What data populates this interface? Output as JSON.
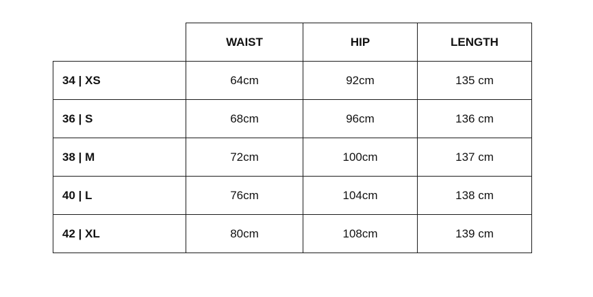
{
  "headers": [
    "WAIST",
    "HIP",
    "LENGTH"
  ],
  "rows": [
    {
      "size": "34 | XS",
      "values": [
        "64cm",
        "92cm",
        "135 cm"
      ]
    },
    {
      "size": "36 | S",
      "values": [
        "68cm",
        "96cm",
        "136 cm"
      ]
    },
    {
      "size": "38 | M",
      "values": [
        "72cm",
        "100cm",
        "137 cm"
      ]
    },
    {
      "size": "40 | L",
      "values": [
        "76cm",
        "104cm",
        "138 cm"
      ]
    },
    {
      "size": "42 | XL",
      "values": [
        "80cm",
        "108cm",
        "139 cm"
      ]
    }
  ]
}
